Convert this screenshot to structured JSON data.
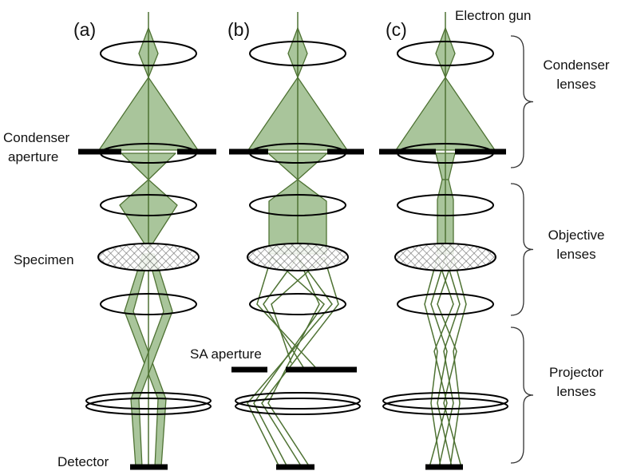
{
  "panels": [
    "(a)",
    "(b)",
    "(c)"
  ],
  "labels": {
    "electron_gun": "Electron gun",
    "condenser_aperture": [
      "Condenser",
      "aperture"
    ],
    "specimen": "Specimen",
    "sa_aperture": "SA aperture",
    "detector": "Detector"
  },
  "groups": [
    {
      "label": [
        "Condenser",
        "lenses"
      ]
    },
    {
      "label": [
        "Objective",
        "lenses"
      ]
    },
    {
      "label": [
        "Projector",
        "lenses"
      ]
    }
  ]
}
